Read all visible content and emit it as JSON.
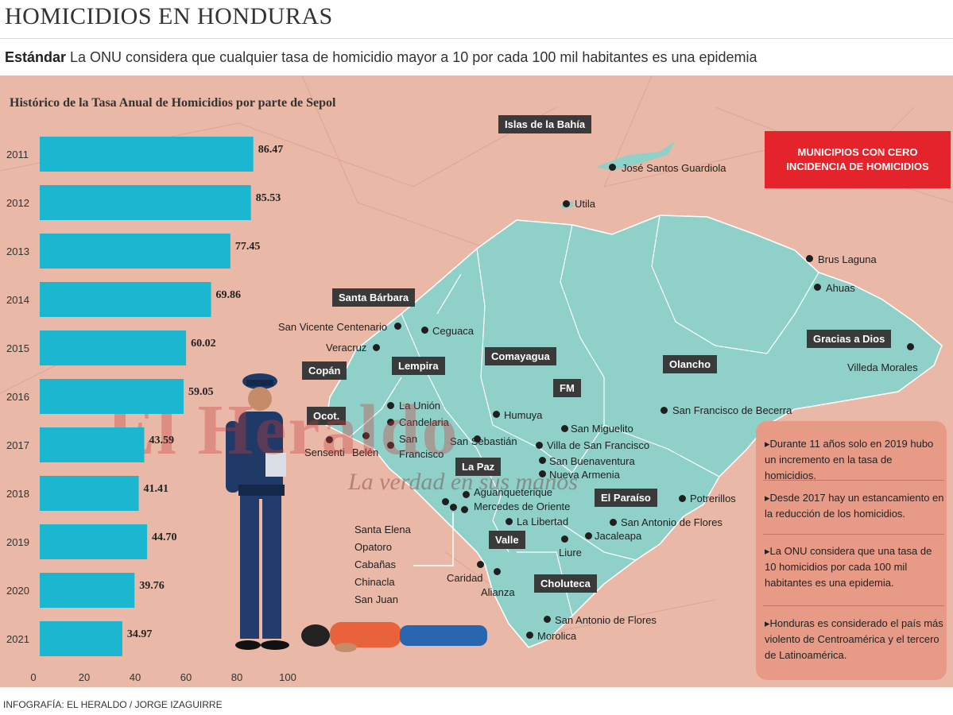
{
  "title": "HOMICIDIOS EN HONDURAS",
  "subtitle": {
    "bold": "Estándar",
    "text": " La ONU considera que cualquier tasa de homicidio mayor a 10 por cada 100 mil habitantes es una epidemia"
  },
  "chart_data": {
    "type": "bar",
    "orientation": "horizontal",
    "title": "Histórico de la Tasa Anual de Homicidios por parte de Sepol",
    "categories": [
      "2011",
      "2012",
      "2013",
      "2014",
      "2015",
      "2016",
      "2017",
      "2018",
      "2019",
      "2020",
      "2021"
    ],
    "values": [
      86.47,
      85.53,
      77.45,
      69.86,
      60.02,
      59.05,
      43.59,
      41.41,
      44.7,
      39.76,
      34.97
    ],
    "value_labels": [
      "86.47",
      "85.53",
      "77.45",
      "69.86",
      "60.02",
      "59.05",
      "43.59",
      "41.41",
      "44.70",
      "39.76",
      "34.97"
    ],
    "xticks": [
      "0",
      "20",
      "40",
      "60",
      "80",
      "100"
    ],
    "xlim": [
      0,
      100
    ],
    "bar_color": "#1bb7d0"
  },
  "legend_box": {
    "line1": "MUNICIPIOS CON CERO",
    "line2": "INCIDENCIA DE HOMICIDIOS",
    "color": "#e4242a"
  },
  "departments": [
    {
      "id": "islas",
      "label": "Islas de la Bahía"
    },
    {
      "id": "santa-barbara",
      "label": "Santa Bárbara"
    },
    {
      "id": "copan",
      "label": "Copán"
    },
    {
      "id": "lempira",
      "label": "Lempira"
    },
    {
      "id": "comayagua",
      "label": "Comayagua"
    },
    {
      "id": "olancho",
      "label": "Olancho"
    },
    {
      "id": "gracias",
      "label": "Gracias a Dios"
    },
    {
      "id": "ocot",
      "label": "Ocot."
    },
    {
      "id": "fm",
      "label": "FM"
    },
    {
      "id": "la-paz",
      "label": "La Paz"
    },
    {
      "id": "el-paraiso",
      "label": "El Paraíso"
    },
    {
      "id": "valle",
      "label": "Valle"
    },
    {
      "id": "choluteca",
      "label": "Choluteca"
    }
  ],
  "municipalities": [
    {
      "id": "jose-santos",
      "label": "José Santos Guardiola"
    },
    {
      "id": "utila",
      "label": "Utila"
    },
    {
      "id": "brus",
      "label": "Brus Laguna"
    },
    {
      "id": "ahuas",
      "label": "Ahuas"
    },
    {
      "id": "villeda",
      "label": "Villeda Morales"
    },
    {
      "id": "san-vicente",
      "label": "San Vicente Centenario"
    },
    {
      "id": "ceguaca",
      "label": "Ceguaca"
    },
    {
      "id": "veracruz",
      "label": "Veracruz"
    },
    {
      "id": "la-union",
      "label": "La Unión"
    },
    {
      "id": "candelaria",
      "label": "Candelaria"
    },
    {
      "id": "san",
      "label": "San"
    },
    {
      "id": "francisco",
      "label": "Francisco"
    },
    {
      "id": "sensenti",
      "label": "Sensenti"
    },
    {
      "id": "belen",
      "label": "Belén"
    },
    {
      "id": "humuya",
      "label": "Humuya"
    },
    {
      "id": "san-sebastian",
      "label": "San Sebastián"
    },
    {
      "id": "san-miguelito",
      "label": "San Miguelito"
    },
    {
      "id": "villa-sf",
      "label": "Villa de San Francisco"
    },
    {
      "id": "san-buenaventura",
      "label": "San Buenaventura"
    },
    {
      "id": "nueva-armenia",
      "label": "Nueva Armenia"
    },
    {
      "id": "san-francisco-becerra",
      "label": "San Francisco de Becerra"
    },
    {
      "id": "aguanqueterique",
      "label": "Aguanqueterique"
    },
    {
      "id": "mercedes",
      "label": "Mercedes de Oriente"
    },
    {
      "id": "la-libertad",
      "label": "La Libertad"
    },
    {
      "id": "potrerillos",
      "label": "Potrerillos"
    },
    {
      "id": "san-antonio-flores-1",
      "label": "San Antonio de Flores"
    },
    {
      "id": "jacaleapa",
      "label": "Jacaleapa"
    },
    {
      "id": "liure",
      "label": "Liure"
    },
    {
      "id": "caridad",
      "label": "Caridad"
    },
    {
      "id": "alianza",
      "label": "Alianza"
    },
    {
      "id": "san-antonio-flores-2",
      "label": "San Antonio de Flores"
    },
    {
      "id": "morolica",
      "label": "Morolica"
    }
  ],
  "left_list": [
    "Santa Elena",
    "Opatoro",
    "Cabañas",
    "Chinacla",
    "San Juan"
  ],
  "notes": [
    "Durante 11 años solo en 2019 hubo un incremento en la tasa de homicidios.",
    "Desde 2017 hay un estancamiento en la reducción de los homicidios.",
    "La ONU considera que una tasa de 10 homicidios por cada 100 mil habitantes es una epidemia.",
    "Honduras es considerado el país más violento de Centroamérica y el tercero de Latinoamérica."
  ],
  "watermark": {
    "name": "El Heraldo",
    "slogan": "La verdad en sus manos"
  },
  "credit": "INFOGRAFÍA: EL HERALDO / JORGE IZAGUIRRE"
}
